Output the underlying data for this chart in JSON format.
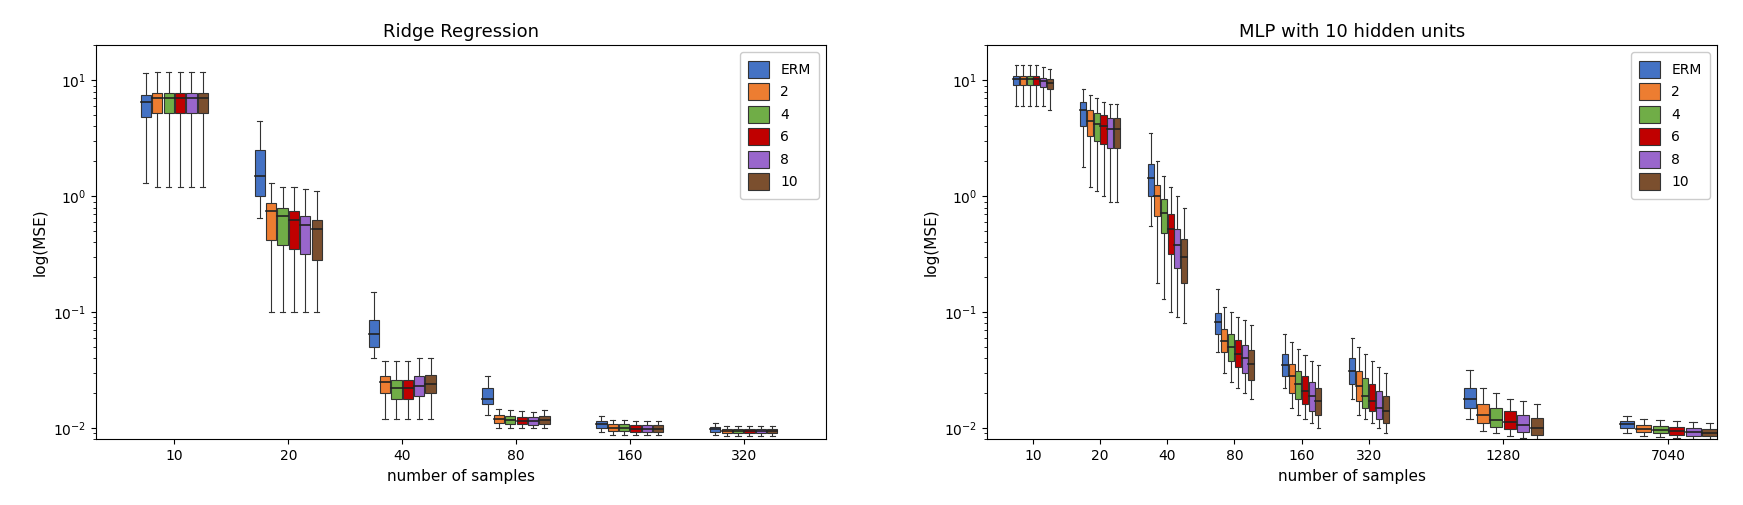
{
  "ridge_title": "Ridge Regression",
  "mlp_title": "MLP with 10 hidden units",
  "xlabel": "number of samples",
  "ylabel": "log(MSE)",
  "legend_labels": [
    "ERM",
    "2",
    "4",
    "6",
    "8",
    "10"
  ],
  "colors": [
    "#4472c4",
    "#ed7d31",
    "#70ad47",
    "#c00000",
    "#9966cc",
    "#7b4f2e"
  ],
  "ridge_xticks": [
    10,
    20,
    40,
    80,
    160,
    320
  ],
  "mlp_xticks": [
    10,
    20,
    40,
    80,
    160,
    320,
    1280,
    7040
  ],
  "ylim": [
    0.008,
    20
  ],
  "ridge_data": {
    "10": {
      "ERM": [
        1.3,
        4.8,
        6.5,
        7.5,
        11.5
      ],
      "2": [
        1.2,
        5.2,
        7.0,
        7.8,
        11.8
      ],
      "4": [
        1.2,
        5.2,
        7.0,
        7.8,
        11.8
      ],
      "6": [
        1.2,
        5.2,
        7.0,
        7.8,
        11.8
      ],
      "8": [
        1.2,
        5.2,
        7.0,
        7.8,
        11.8
      ],
      "10": [
        1.2,
        5.2,
        7.0,
        7.8,
        11.8
      ]
    },
    "20": {
      "ERM": [
        0.65,
        1.0,
        1.5,
        2.5,
        4.5
      ],
      "2": [
        0.1,
        0.42,
        0.75,
        0.88,
        1.3
      ],
      "4": [
        0.1,
        0.38,
        0.68,
        0.8,
        1.2
      ],
      "6": [
        0.1,
        0.35,
        0.62,
        0.74,
        1.2
      ],
      "8": [
        0.1,
        0.32,
        0.57,
        0.68,
        1.15
      ],
      "10": [
        0.1,
        0.28,
        0.52,
        0.62,
        1.1
      ]
    },
    "40": {
      "ERM": [
        0.04,
        0.05,
        0.065,
        0.085,
        0.15
      ],
      "2": [
        0.012,
        0.02,
        0.025,
        0.028,
        0.038
      ],
      "4": [
        0.012,
        0.018,
        0.022,
        0.026,
        0.038
      ],
      "6": [
        0.012,
        0.018,
        0.022,
        0.026,
        0.038
      ],
      "8": [
        0.012,
        0.019,
        0.023,
        0.028,
        0.04
      ],
      "10": [
        0.012,
        0.02,
        0.024,
        0.029,
        0.04
      ]
    },
    "80": {
      "ERM": [
        0.013,
        0.016,
        0.018,
        0.022,
        0.028
      ],
      "2": [
        0.01,
        0.011,
        0.012,
        0.013,
        0.0145
      ],
      "4": [
        0.01,
        0.0108,
        0.0118,
        0.0128,
        0.0142
      ],
      "6": [
        0.01,
        0.0108,
        0.0116,
        0.0125,
        0.014
      ],
      "8": [
        0.01,
        0.0107,
        0.0115,
        0.0124,
        0.0138
      ],
      "10": [
        0.01,
        0.0108,
        0.0117,
        0.0127,
        0.0142
      ]
    },
    "160": {
      "ERM": [
        0.0092,
        0.01,
        0.0108,
        0.0115,
        0.0128
      ],
      "2": [
        0.0088,
        0.0094,
        0.01,
        0.0108,
        0.0118
      ],
      "4": [
        0.0088,
        0.0094,
        0.01,
        0.0108,
        0.0118
      ],
      "6": [
        0.0088,
        0.0093,
        0.0099,
        0.0107,
        0.0116
      ],
      "8": [
        0.0088,
        0.0093,
        0.0099,
        0.0107,
        0.0116
      ],
      "10": [
        0.0088,
        0.0093,
        0.0099,
        0.0107,
        0.0116
      ]
    },
    "320": {
      "ERM": [
        0.0088,
        0.0093,
        0.0098,
        0.0102,
        0.011
      ],
      "2": [
        0.0086,
        0.009,
        0.0094,
        0.0099,
        0.0105
      ],
      "4": [
        0.0086,
        0.009,
        0.0094,
        0.0099,
        0.0105
      ],
      "6": [
        0.0086,
        0.009,
        0.0094,
        0.0099,
        0.0105
      ],
      "8": [
        0.0086,
        0.009,
        0.0094,
        0.0099,
        0.0105
      ],
      "10": [
        0.0086,
        0.009,
        0.0094,
        0.0099,
        0.0105
      ]
    }
  },
  "mlp_data": {
    "10": {
      "ERM": [
        6.0,
        9.2,
        10.2,
        10.8,
        13.5
      ],
      "2": [
        6.0,
        9.2,
        10.2,
        10.8,
        13.5
      ],
      "4": [
        6.0,
        9.2,
        10.2,
        10.8,
        13.5
      ],
      "6": [
        6.0,
        9.2,
        10.2,
        10.8,
        13.5
      ],
      "8": [
        6.0,
        8.8,
        9.8,
        10.4,
        13.0
      ],
      "10": [
        5.5,
        8.5,
        9.5,
        10.2,
        12.5
      ]
    },
    "20": {
      "ERM": [
        1.8,
        4.0,
        5.5,
        6.5,
        8.5
      ],
      "2": [
        1.2,
        3.3,
        4.5,
        5.5,
        7.5
      ],
      "4": [
        1.1,
        3.0,
        4.2,
        5.2,
        7.0
      ],
      "6": [
        1.0,
        2.8,
        4.0,
        5.0,
        6.5
      ],
      "8": [
        0.9,
        2.6,
        3.8,
        4.7,
        6.2
      ],
      "10": [
        0.9,
        2.6,
        3.8,
        4.7,
        6.2
      ]
    },
    "40": {
      "ERM": [
        0.55,
        1.0,
        1.45,
        1.9,
        3.5
      ],
      "2": [
        0.18,
        0.68,
        1.0,
        1.25,
        2.0
      ],
      "4": [
        0.13,
        0.48,
        0.72,
        0.95,
        1.5
      ],
      "6": [
        0.1,
        0.32,
        0.52,
        0.7,
        1.2
      ],
      "8": [
        0.09,
        0.24,
        0.38,
        0.52,
        1.0
      ],
      "10": [
        0.08,
        0.18,
        0.3,
        0.43,
        0.8
      ]
    },
    "80": {
      "ERM": [
        0.045,
        0.065,
        0.082,
        0.098,
        0.16
      ],
      "2": [
        0.03,
        0.045,
        0.056,
        0.072,
        0.11
      ],
      "4": [
        0.025,
        0.038,
        0.05,
        0.065,
        0.1
      ],
      "6": [
        0.022,
        0.034,
        0.044,
        0.058,
        0.09
      ],
      "8": [
        0.02,
        0.03,
        0.04,
        0.052,
        0.085
      ],
      "10": [
        0.018,
        0.026,
        0.036,
        0.047,
        0.078
      ]
    },
    "160": {
      "ERM": [
        0.022,
        0.028,
        0.035,
        0.044,
        0.065
      ],
      "2": [
        0.015,
        0.02,
        0.028,
        0.036,
        0.055
      ],
      "4": [
        0.013,
        0.018,
        0.024,
        0.031,
        0.048
      ],
      "6": [
        0.012,
        0.016,
        0.021,
        0.028,
        0.043
      ],
      "8": [
        0.011,
        0.014,
        0.019,
        0.025,
        0.038
      ],
      "10": [
        0.01,
        0.013,
        0.017,
        0.022,
        0.035
      ]
    },
    "320": {
      "ERM": [
        0.018,
        0.024,
        0.031,
        0.04,
        0.06
      ],
      "2": [
        0.013,
        0.017,
        0.023,
        0.031,
        0.05
      ],
      "4": [
        0.012,
        0.015,
        0.019,
        0.027,
        0.044
      ],
      "6": [
        0.011,
        0.014,
        0.017,
        0.024,
        0.038
      ],
      "8": [
        0.01,
        0.012,
        0.015,
        0.021,
        0.034
      ],
      "10": [
        0.009,
        0.011,
        0.014,
        0.019,
        0.03
      ]
    },
    "1280": {
      "ERM": [
        0.012,
        0.015,
        0.018,
        0.022,
        0.032
      ],
      "2": [
        0.0095,
        0.011,
        0.013,
        0.016,
        0.022
      ],
      "4": [
        0.009,
        0.0102,
        0.0118,
        0.0148,
        0.02
      ],
      "6": [
        0.0085,
        0.0098,
        0.0112,
        0.014,
        0.018
      ],
      "8": [
        0.0082,
        0.0092,
        0.0106,
        0.013,
        0.017
      ],
      "10": [
        0.008,
        0.0088,
        0.01,
        0.0122,
        0.016
      ]
    },
    "7040": {
      "ERM": [
        0.009,
        0.01,
        0.0108,
        0.0115,
        0.0128
      ],
      "2": [
        0.0085,
        0.0092,
        0.0099,
        0.0107,
        0.012
      ],
      "4": [
        0.0083,
        0.009,
        0.0097,
        0.0105,
        0.0118
      ],
      "6": [
        0.0082,
        0.0088,
        0.0095,
        0.0103,
        0.0116
      ],
      "8": [
        0.008,
        0.0086,
        0.0093,
        0.0101,
        0.0112
      ],
      "10": [
        0.008,
        0.0085,
        0.0091,
        0.0099,
        0.011
      ]
    }
  }
}
